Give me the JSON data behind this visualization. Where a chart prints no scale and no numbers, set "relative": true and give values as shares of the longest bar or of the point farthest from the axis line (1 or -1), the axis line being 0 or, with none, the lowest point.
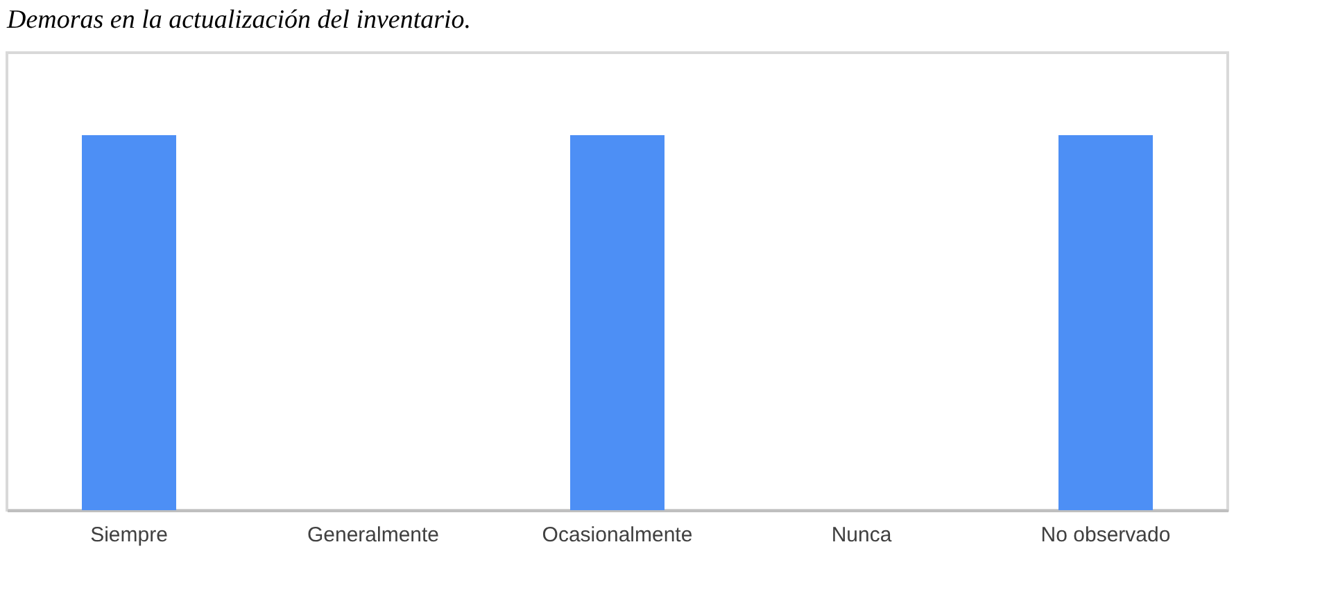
{
  "chart_data": {
    "type": "bar",
    "title": "Demoras en la actualización del inventario.",
    "categories": [
      "Siempre",
      "Generalmente",
      "Ocasionalmente",
      "Nunca",
      "No observado"
    ],
    "values": [
      1,
      0,
      1,
      0,
      1
    ],
    "color": "#4d8ff5",
    "relative": true,
    "grid": false,
    "legend": false
  }
}
